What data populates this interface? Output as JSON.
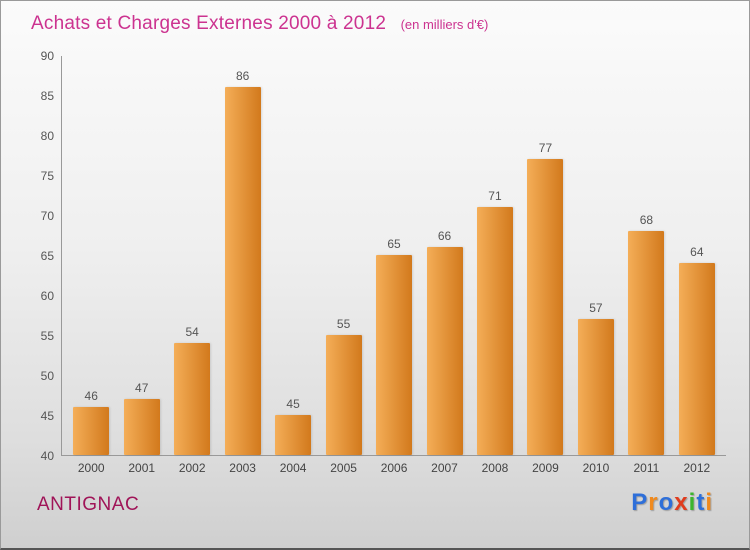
{
  "header": {
    "title": "Achats et Charges Externes 2000 à 2012",
    "subtitle": "(en milliers d'€)"
  },
  "footer": {
    "location": "ANTIGNAC",
    "logo_letters": [
      {
        "char": "P",
        "color": "#2e6fd9"
      },
      {
        "char": "r",
        "color": "#f08a1e"
      },
      {
        "char": "o",
        "color": "#2e6fd9"
      },
      {
        "char": "x",
        "color": "#e03c1e"
      },
      {
        "char": "i",
        "color": "#3cb52e"
      },
      {
        "char": "t",
        "color": "#2e6fd9"
      },
      {
        "char": "i",
        "color": "#f08a1e"
      }
    ]
  },
  "chart_data": {
    "type": "bar",
    "title": "Achats et Charges Externes 2000 à 2012",
    "subtitle": "(en milliers d'€)",
    "xlabel": "",
    "ylabel": "",
    "categories": [
      "2000",
      "2001",
      "2002",
      "2003",
      "2004",
      "2005",
      "2006",
      "2007",
      "2008",
      "2009",
      "2010",
      "2011",
      "2012"
    ],
    "values": [
      46,
      47,
      54,
      86,
      45,
      55,
      65,
      66,
      71,
      77,
      57,
      68,
      64
    ],
    "ylim": [
      40,
      90
    ],
    "yticks": [
      40,
      45,
      50,
      55,
      60,
      65,
      70,
      75,
      80,
      85,
      90
    ],
    "grid": false,
    "legend": false,
    "bar_color_light": "#f4ae58",
    "bar_color_dark": "#d2791c",
    "title_color": "#cc3390",
    "label_color": "#555555"
  }
}
